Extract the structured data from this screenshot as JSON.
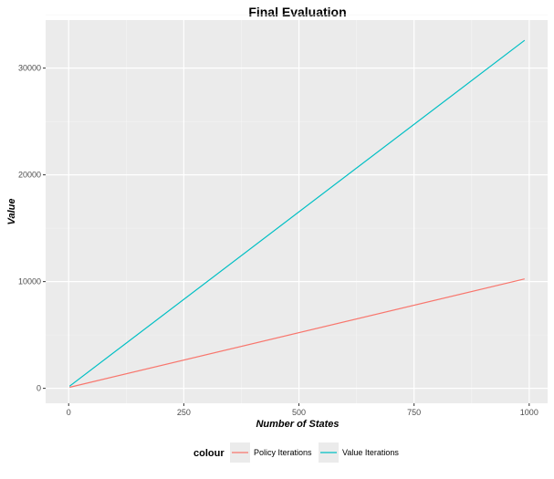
{
  "chart_data": {
    "type": "line",
    "title": "Final Evaluation",
    "xlabel": "Number of States",
    "ylabel": "Value",
    "x_ticks": [
      "0",
      "250",
      "500",
      "750",
      "1000"
    ],
    "y_ticks": [
      "0",
      "10000",
      "20000",
      "30000"
    ],
    "xlim": [
      -50,
      1040
    ],
    "ylim": [
      -1400,
      34500
    ],
    "grid": true,
    "legend": {
      "title": "colour",
      "placement": "bottom"
    },
    "series": [
      {
        "name": "Policy Iterations",
        "color": "#F8766D",
        "x": [
          2,
          990
        ],
        "y": [
          100,
          10250
        ]
      },
      {
        "name": "Value Iterations",
        "color": "#00BFC4",
        "x": [
          2,
          990
        ],
        "y": [
          200,
          32600
        ]
      }
    ]
  }
}
